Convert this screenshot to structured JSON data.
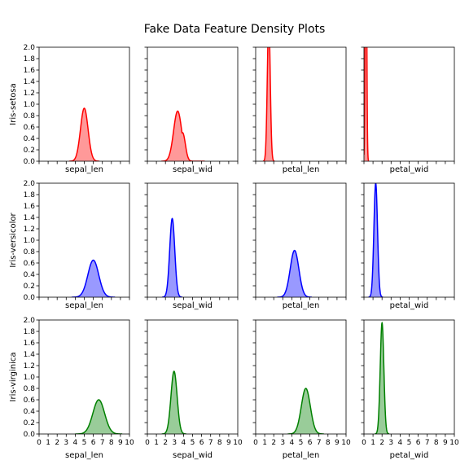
{
  "chart_data": {
    "type": "density-grid",
    "title": "Fake Data Feature Density Plots",
    "rows": [
      "Iris-setosa",
      "Iris-versicolor",
      "Iris-virginica"
    ],
    "columns": [
      "sepal_len",
      "sepal_wid",
      "petal_len",
      "petal_wid"
    ],
    "row_colors": [
      "#ff0000",
      "#0000ff",
      "#008000"
    ],
    "xlim": [
      0,
      10
    ],
    "ylim": [
      0,
      2.0
    ],
    "x_ticks": [
      0,
      1,
      2,
      3,
      4,
      5,
      6,
      7,
      8,
      9,
      10
    ],
    "y_ticks": [
      "0.0",
      "0.2",
      "0.4",
      "0.6",
      "0.8",
      "1.0",
      "1.2",
      "1.4",
      "1.6",
      "1.8",
      "2.0"
    ],
    "grid": false,
    "panels": [
      [
        {
          "mean": 5.0,
          "sd": 0.42,
          "peak": 0.93
        },
        {
          "mean": 3.35,
          "sd": 0.45,
          "peak": 0.88,
          "shoulder": {
            "mean": 3.9,
            "sd": 0.3,
            "peak": 0.5
          }
        },
        {
          "mean": 1.45,
          "sd": 0.16,
          "peak": 2.5
        },
        {
          "mean": 0.22,
          "sd": 0.08,
          "peak": 5.0
        }
      ],
      [
        {
          "mean": 6.0,
          "sd": 0.6,
          "peak": 0.65
        },
        {
          "mean": 2.75,
          "sd": 0.28,
          "peak": 1.38
        },
        {
          "mean": 4.3,
          "sd": 0.48,
          "peak": 0.82
        },
        {
          "mean": 1.3,
          "sd": 0.2,
          "peak": 2.0
        }
      ],
      [
        {
          "mean": 6.6,
          "sd": 0.65,
          "peak": 0.6
        },
        {
          "mean": 2.95,
          "sd": 0.34,
          "peak": 1.1
        },
        {
          "mean": 5.55,
          "sd": 0.5,
          "peak": 0.8
        },
        {
          "mean": 2.0,
          "sd": 0.2,
          "peak": 1.95
        }
      ]
    ]
  }
}
